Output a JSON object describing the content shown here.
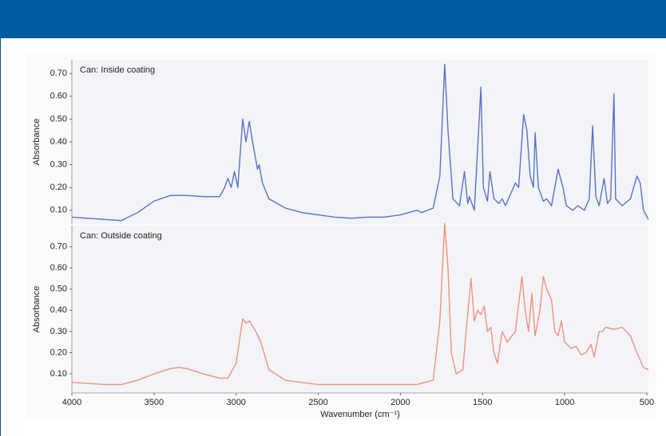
{
  "chart_data": [
    {
      "type": "line",
      "label": "Can: Inside coating",
      "y_label": "Absorbance",
      "color": "#5a72c4",
      "xlim": [
        4000,
        490
      ],
      "ylim": [
        0.04,
        0.76
      ],
      "yticks": [
        {
          "value": 0.1,
          "label": "0.10"
        },
        {
          "value": 0.2,
          "label": "0.20"
        },
        {
          "value": 0.3,
          "label": "0.30"
        },
        {
          "value": 0.4,
          "label": "0.40"
        },
        {
          "value": 0.5,
          "label": "0.50"
        },
        {
          "value": 0.6,
          "label": "0.60"
        },
        {
          "value": 0.7,
          "label": "0.70"
        }
      ],
      "x": [
        4000,
        3800,
        3700,
        3600,
        3500,
        3400,
        3300,
        3200,
        3100,
        3070,
        3050,
        3030,
        3010,
        2990,
        2960,
        2940,
        2920,
        2900,
        2870,
        2860,
        2840,
        2800,
        2700,
        2600,
        2500,
        2400,
        2300,
        2200,
        2100,
        2000,
        1950,
        1900,
        1870,
        1800,
        1760,
        1730,
        1710,
        1680,
        1640,
        1610,
        1590,
        1580,
        1550,
        1510,
        1495,
        1470,
        1455,
        1430,
        1400,
        1380,
        1360,
        1300,
        1280,
        1250,
        1230,
        1210,
        1190,
        1180,
        1160,
        1130,
        1110,
        1080,
        1040,
        1010,
        990,
        950,
        920,
        880,
        850,
        830,
        810,
        790,
        760,
        740,
        720,
        700,
        690,
        650,
        600,
        560,
        540,
        520,
        490
      ],
      "values": [
        0.07,
        0.06,
        0.055,
        0.09,
        0.14,
        0.165,
        0.165,
        0.16,
        0.16,
        0.2,
        0.24,
        0.2,
        0.27,
        0.2,
        0.5,
        0.4,
        0.49,
        0.4,
        0.28,
        0.3,
        0.22,
        0.15,
        0.11,
        0.09,
        0.08,
        0.07,
        0.065,
        0.07,
        0.07,
        0.08,
        0.09,
        0.1,
        0.09,
        0.11,
        0.25,
        0.74,
        0.45,
        0.15,
        0.12,
        0.27,
        0.13,
        0.16,
        0.1,
        0.64,
        0.2,
        0.14,
        0.27,
        0.15,
        0.13,
        0.15,
        0.12,
        0.22,
        0.2,
        0.52,
        0.45,
        0.25,
        0.2,
        0.44,
        0.2,
        0.14,
        0.15,
        0.12,
        0.28,
        0.2,
        0.12,
        0.1,
        0.12,
        0.1,
        0.15,
        0.47,
        0.16,
        0.12,
        0.24,
        0.13,
        0.15,
        0.61,
        0.15,
        0.12,
        0.15,
        0.25,
        0.22,
        0.1,
        0.06
      ]
    },
    {
      "type": "line",
      "label": "Can: Outside coating",
      "y_label": "Absorbance",
      "x_label": "Wavenumber (cm⁻¹)",
      "color": "#f0927c",
      "xlim": [
        4000,
        490
      ],
      "ylim": [
        0.01,
        0.8
      ],
      "xticks": [
        4000,
        3500,
        3000,
        2500,
        2000,
        1500,
        1000,
        500
      ],
      "yticks": [
        {
          "value": 0.1,
          "label": "0.10"
        },
        {
          "value": 0.2,
          "label": "0.20"
        },
        {
          "value": 0.3,
          "label": "0.30"
        },
        {
          "value": 0.4,
          "label": "0.40"
        },
        {
          "value": 0.5,
          "label": "0.50"
        },
        {
          "value": 0.6,
          "label": "0.60"
        },
        {
          "value": 0.7,
          "label": "0.70"
        }
      ],
      "x": [
        4000,
        3800,
        3700,
        3600,
        3500,
        3400,
        3350,
        3300,
        3200,
        3100,
        3050,
        3000,
        2960,
        2940,
        2920,
        2880,
        2850,
        2800,
        2700,
        2500,
        2300,
        2100,
        1900,
        1800,
        1760,
        1730,
        1710,
        1690,
        1660,
        1620,
        1600,
        1570,
        1550,
        1530,
        1510,
        1490,
        1470,
        1450,
        1430,
        1410,
        1380,
        1350,
        1300,
        1260,
        1240,
        1220,
        1200,
        1180,
        1150,
        1130,
        1110,
        1080,
        1060,
        1040,
        1020,
        1000,
        960,
        930,
        900,
        870,
        840,
        820,
        790,
        770,
        750,
        700,
        650,
        600,
        560,
        520,
        490
      ],
      "values": [
        0.06,
        0.05,
        0.05,
        0.07,
        0.1,
        0.125,
        0.13,
        0.125,
        0.1,
        0.08,
        0.08,
        0.15,
        0.36,
        0.34,
        0.35,
        0.3,
        0.25,
        0.12,
        0.07,
        0.05,
        0.05,
        0.05,
        0.05,
        0.07,
        0.35,
        0.81,
        0.6,
        0.2,
        0.1,
        0.12,
        0.3,
        0.55,
        0.35,
        0.4,
        0.38,
        0.42,
        0.3,
        0.32,
        0.2,
        0.15,
        0.3,
        0.25,
        0.3,
        0.56,
        0.4,
        0.3,
        0.48,
        0.28,
        0.4,
        0.56,
        0.5,
        0.45,
        0.3,
        0.28,
        0.35,
        0.25,
        0.22,
        0.23,
        0.19,
        0.2,
        0.24,
        0.18,
        0.3,
        0.3,
        0.32,
        0.31,
        0.32,
        0.28,
        0.2,
        0.13,
        0.12
      ]
    }
  ]
}
